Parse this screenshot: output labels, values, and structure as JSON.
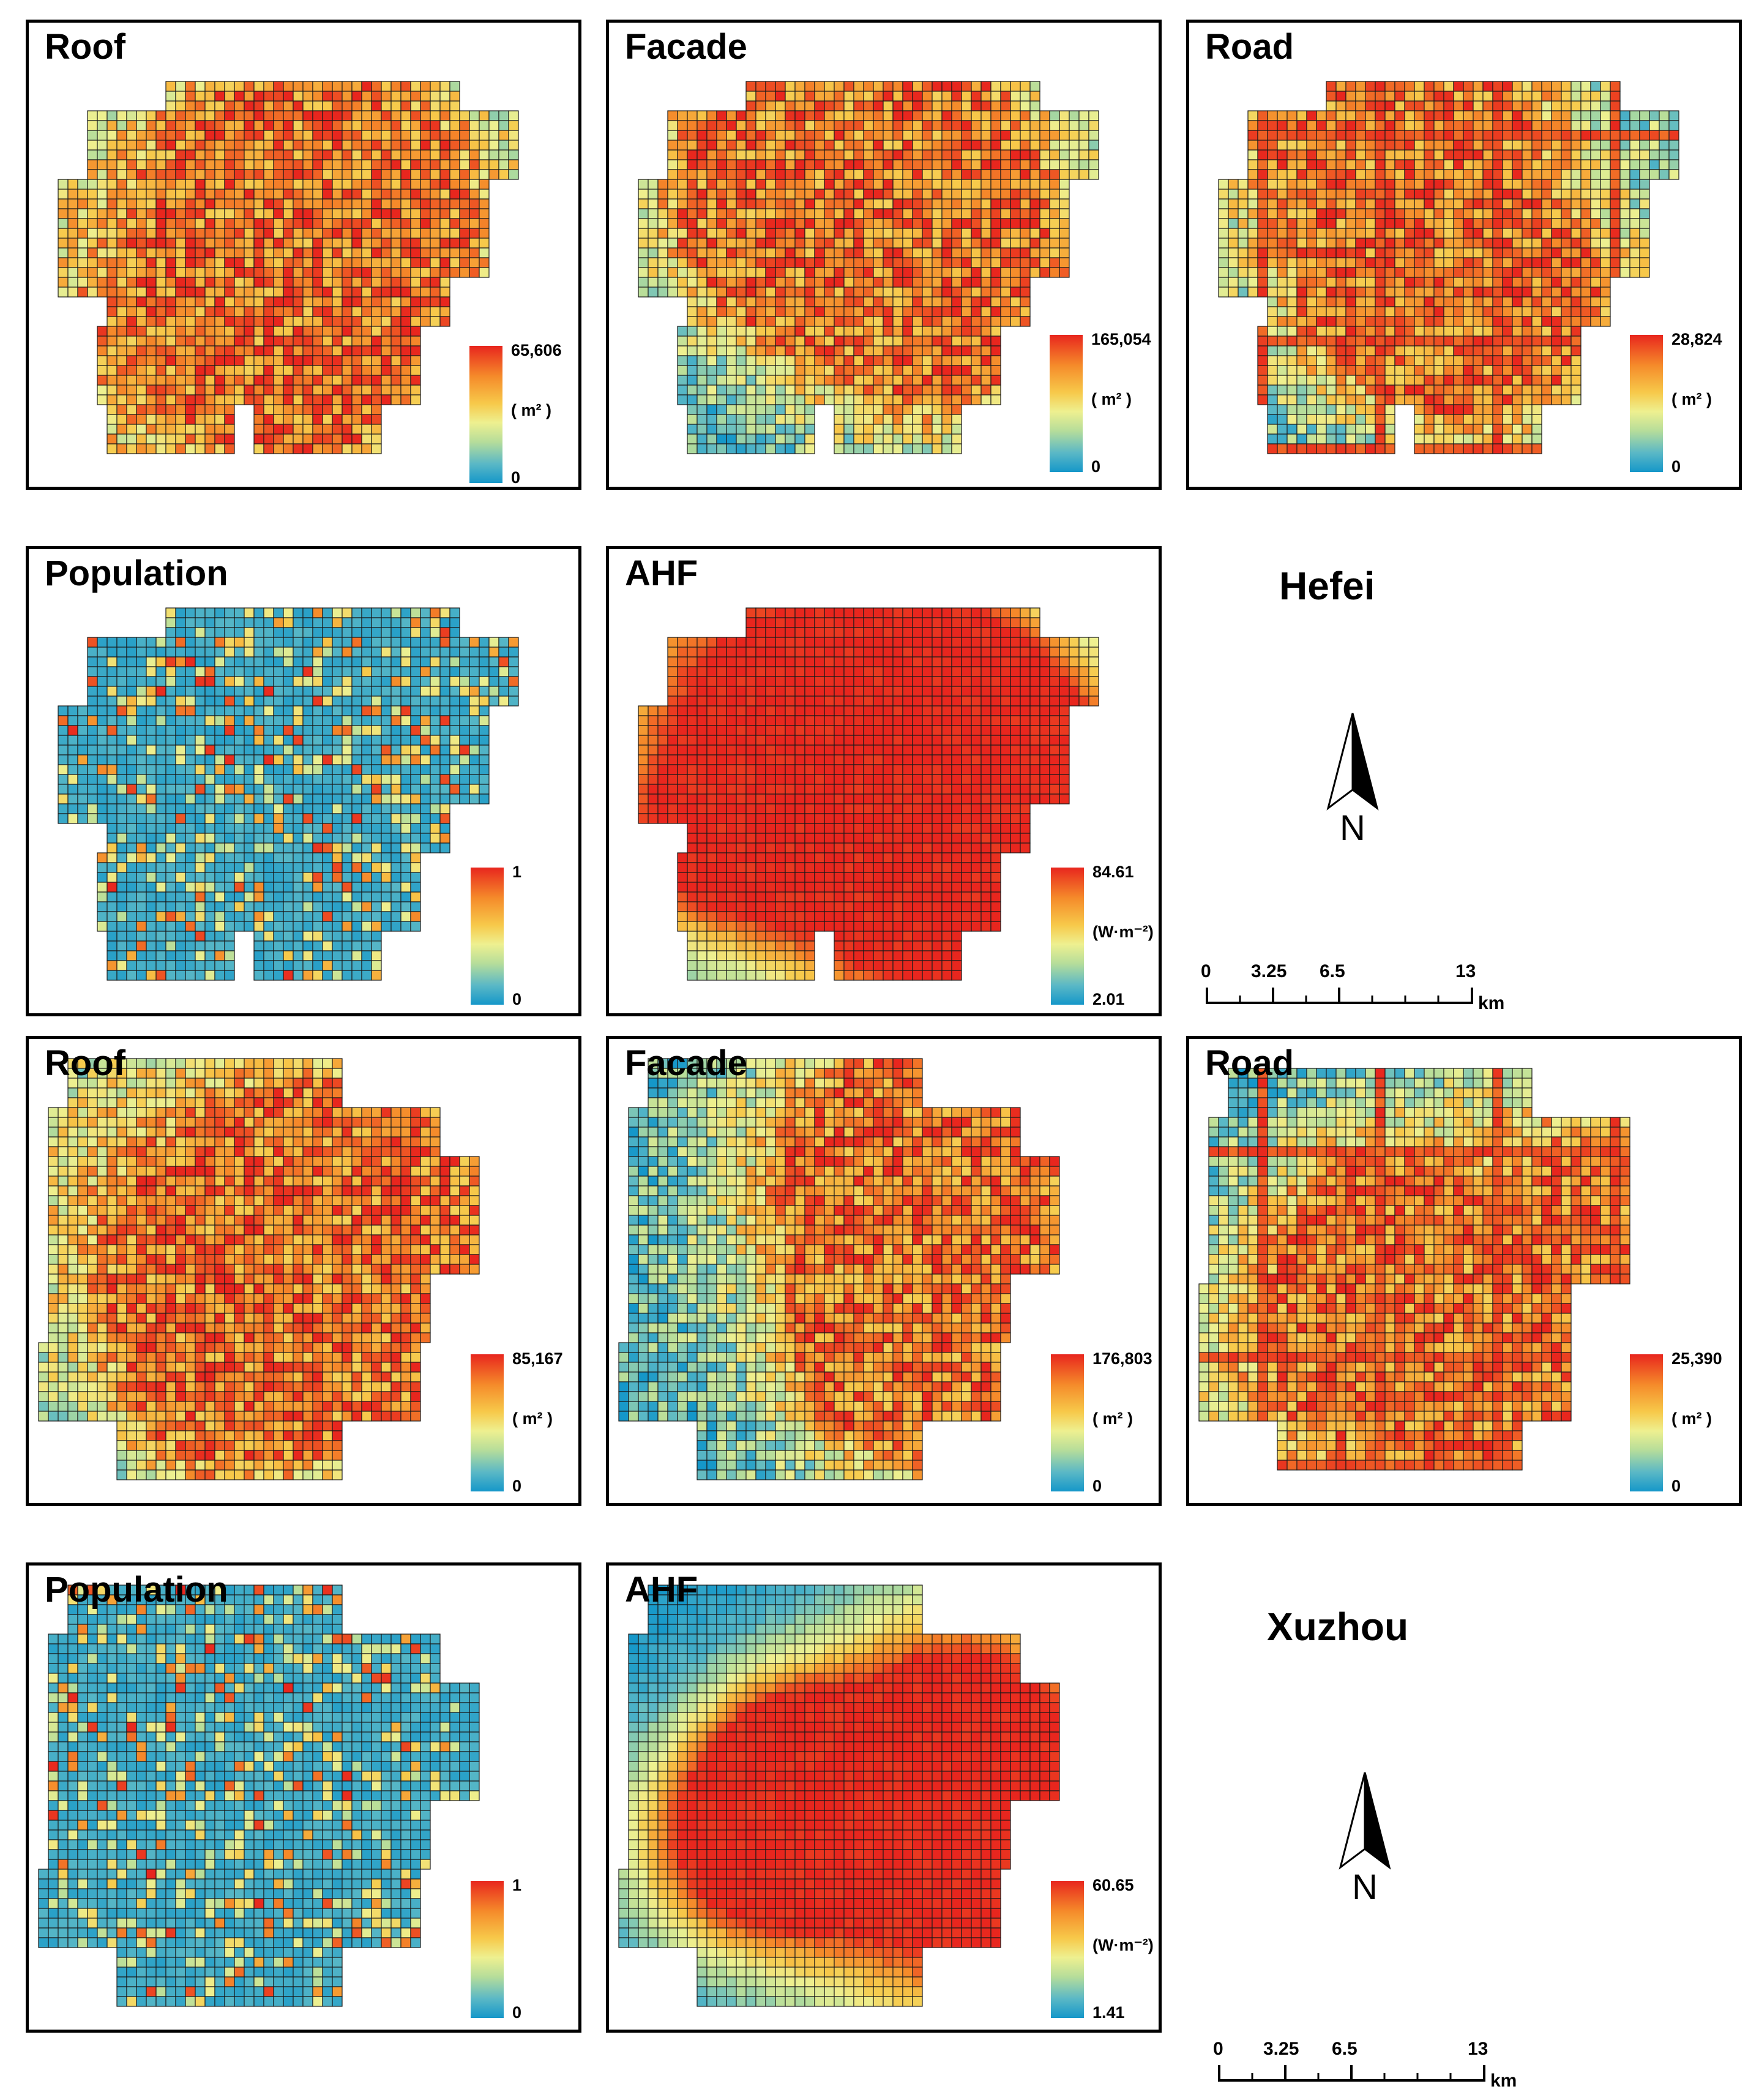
{
  "colors": {
    "low": "#1597c9",
    "mid": "#eef090",
    "high": "#e8261e"
  },
  "cities": [
    {
      "name": "Hefei",
      "panels": [
        {
          "key": "roof",
          "title": "Roof",
          "max": "65,606",
          "min": "0",
          "unit": "( m² )"
        },
        {
          "key": "facade",
          "title": "Facade",
          "max": "165,054",
          "min": "0",
          "unit": "( m² )"
        },
        {
          "key": "road",
          "title": "Road",
          "max": "28,824",
          "min": "0",
          "unit": "( m² )"
        },
        {
          "key": "population",
          "title": "Population",
          "max": "1",
          "min": "0",
          "unit": ""
        },
        {
          "key": "ahf",
          "title": "AHF",
          "max": "84.61",
          "min": "2.01",
          "unit": "(W·m⁻²)"
        }
      ],
      "scale": {
        "labels": [
          "0",
          "3.25",
          "6.5",
          "13"
        ],
        "unit": "km"
      },
      "north_label": "N"
    },
    {
      "name": "Xuzhou",
      "panels": [
        {
          "key": "roof",
          "title": "Roof",
          "max": "85,167",
          "min": "0",
          "unit": "( m² )"
        },
        {
          "key": "facade",
          "title": "Facade",
          "max": "176,803",
          "min": "0",
          "unit": "( m² )"
        },
        {
          "key": "road",
          "title": "Road",
          "max": "25,390",
          "min": "0",
          "unit": "( m² )"
        },
        {
          "key": "population",
          "title": "Population",
          "max": "1",
          "min": "0",
          "unit": ""
        },
        {
          "key": "ahf",
          "title": "AHF",
          "max": "60.65",
          "min": "1.41",
          "unit": "(W·m⁻²)"
        }
      ],
      "scale": {
        "labels": [
          "0",
          "3.25",
          "6.5",
          "13"
        ],
        "unit": "km"
      },
      "north_label": "N"
    }
  ]
}
